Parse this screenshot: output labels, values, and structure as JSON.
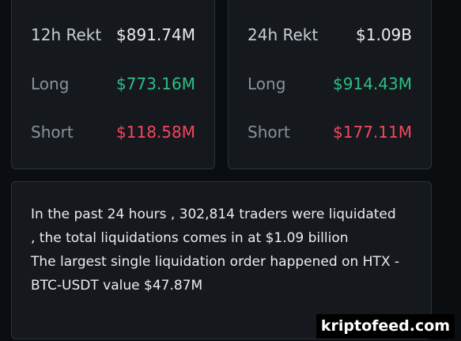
{
  "cards": [
    {
      "rows": [
        {
          "label": "12h Rekt",
          "value": "$891.74M"
        },
        {
          "label": "Long",
          "value": "$773.16M"
        },
        {
          "label": "Short",
          "value": "$118.58M"
        }
      ]
    },
    {
      "rows": [
        {
          "label": "24h Rekt",
          "value": "$1.09B"
        },
        {
          "label": "Long",
          "value": "$914.43M"
        },
        {
          "label": "Short",
          "value": "$177.11M"
        }
      ]
    }
  ],
  "summary": {
    "paragraphs": [
      "In the past 24 hours , 302,814 traders were liquidated , the total liquidations comes in at $1.09 billion",
      "The largest single liquidation order happened on HTX - BTC-USDT value $47.87M"
    ]
  },
  "watermark": "kriptofeed.com"
}
